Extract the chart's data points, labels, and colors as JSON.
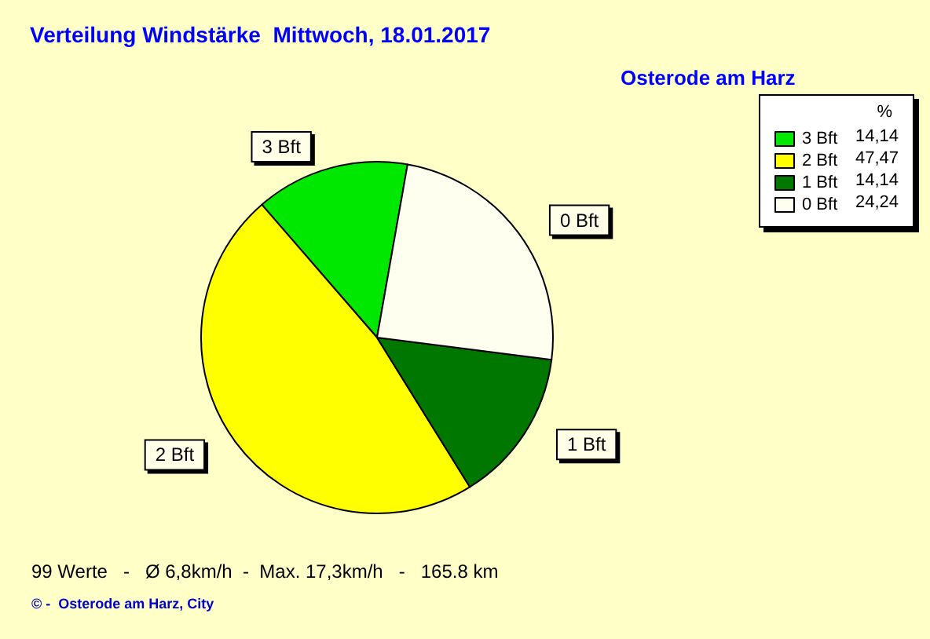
{
  "chart_data": {
    "type": "pie",
    "title": "Verteilung Windstärke  Mittwoch, 18.01.2017",
    "subtitle": "Osterode am Harz",
    "legend_title": "%",
    "categories": [
      "3 Bft",
      "2 Bft",
      "1 Bft",
      "0 Bft"
    ],
    "values": [
      14.14,
      47.47,
      14.14,
      24.24
    ],
    "value_labels": [
      "14,14",
      "47,47",
      "14,14",
      "24,24"
    ],
    "colors": [
      "#00e800",
      "#ffff00",
      "#007800",
      "#fffff0"
    ],
    "legend": "top right",
    "annotations": [
      "99 Werte   -   Ø 6,8km/h  -  Max. 17,3km/h   -   165.8 km",
      "© -  Osterode am Harz, City"
    ]
  }
}
